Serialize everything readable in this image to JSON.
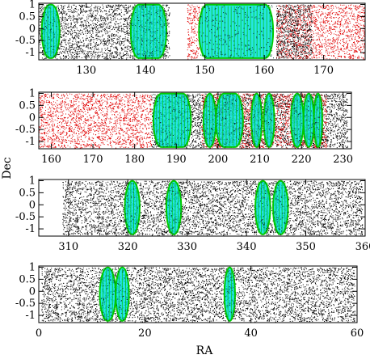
{
  "chart_data": {
    "type": "scatter",
    "ylabel": "Dec",
    "xlabel": "RA",
    "colors": {
      "background_points": "#000000",
      "red_points": "#e00000",
      "green_fields": "#00c800",
      "cyan_fields": "#00e0e0"
    },
    "panels": [
      {
        "id": "panel-1",
        "xlim": [
          122,
          177
        ],
        "ylim": [
          -1.3,
          1.05
        ],
        "xticks": [
          "130",
          "140",
          "150",
          "160",
          "170"
        ],
        "xtick_values": [
          130,
          140,
          150,
          160,
          170
        ],
        "yticks": [
          "1",
          "0.5",
          "0",
          "-0.5",
          "-1"
        ],
        "ytick_values": [
          1,
          0.5,
          0,
          -0.5,
          -1
        ],
        "point_coverage": [
          {
            "color": "black",
            "ra_min": 122,
            "ra_max": 144
          },
          {
            "color": "red",
            "ra_min": 147,
            "ra_max": 149
          },
          {
            "color": "red",
            "ra_min": 162,
            "ra_max": 177
          },
          {
            "color": "black",
            "ra_min": 162,
            "ra_max": 168
          }
        ],
        "fields": [
          {
            "ra_min": 122.5,
            "ra_max": 125.5
          },
          {
            "ra_min": 137.5,
            "ra_max": 143.5
          },
          {
            "ra_min": 149,
            "ra_max": 161.5
          }
        ]
      },
      {
        "id": "panel-2",
        "xlim": [
          157,
          232
        ],
        "ylim": [
          -1.3,
          1.05
        ],
        "xticks": [
          "160",
          "170",
          "180",
          "190",
          "200",
          "210",
          "220",
          "230"
        ],
        "xtick_values": [
          160,
          170,
          180,
          190,
          200,
          210,
          220,
          230
        ],
        "yticks": [
          "1",
          "0.5",
          "0",
          "-0.5",
          "-1"
        ],
        "ytick_values": [
          1,
          0.5,
          0,
          -0.5,
          -1
        ],
        "point_coverage": [
          {
            "color": "red",
            "ra_min": 157,
            "ra_max": 184
          },
          {
            "color": "black",
            "ra_min": 184,
            "ra_max": 231
          },
          {
            "color": "red",
            "ra_min": 196,
            "ra_max": 226
          }
        ],
        "fields": [
          {
            "ra_min": 184.5,
            "ra_max": 193.5
          },
          {
            "ra_min": 196.5,
            "ra_max": 199.5
          },
          {
            "ra_min": 199.5,
            "ra_max": 206
          },
          {
            "ra_min": 208,
            "ra_max": 210.5
          },
          {
            "ra_min": 211,
            "ra_max": 213.5
          },
          {
            "ra_min": 217.5,
            "ra_max": 220.5
          },
          {
            "ra_min": 220.5,
            "ra_max": 223
          },
          {
            "ra_min": 223,
            "ra_max": 225
          }
        ]
      },
      {
        "id": "panel-3",
        "xlim": [
          305,
          360
        ],
        "ylim": [
          -1.3,
          1.05
        ],
        "xticks": [
          "310",
          "320",
          "330",
          "340",
          "350",
          "360"
        ],
        "xtick_values": [
          310,
          320,
          330,
          340,
          350,
          360
        ],
        "yticks": [
          "1",
          "0.5",
          "0",
          "-0.5",
          "-1"
        ],
        "ytick_values": [
          1,
          0.5,
          0,
          -0.5,
          -1
        ],
        "point_coverage": [
          {
            "color": "black",
            "ra_min": 309,
            "ra_max": 359.5
          }
        ],
        "fields": [
          {
            "ra_min": 319.5,
            "ra_max": 322
          },
          {
            "ra_min": 326.5,
            "ra_max": 329
          },
          {
            "ra_min": 341.5,
            "ra_max": 344
          },
          {
            "ra_min": 344.5,
            "ra_max": 347
          }
        ]
      },
      {
        "id": "panel-4",
        "xlim": [
          0,
          60
        ],
        "ylim": [
          -1.3,
          1.05
        ],
        "xticks": [
          "0",
          "20",
          "40",
          "60"
        ],
        "xtick_values": [
          0,
          20,
          40,
          60
        ],
        "yticks": [
          "1",
          "0.5",
          "0",
          "-0.5",
          "-1"
        ],
        "ytick_values": [
          1,
          0.5,
          0,
          -0.5,
          -1
        ],
        "point_coverage": [
          {
            "color": "black",
            "ra_min": 0.5,
            "ra_max": 59.5
          }
        ],
        "fields": [
          {
            "ra_min": 11.5,
            "ra_max": 14.5
          },
          {
            "ra_min": 14.5,
            "ra_max": 17
          },
          {
            "ra_min": 35,
            "ra_max": 37
          }
        ]
      }
    ]
  }
}
